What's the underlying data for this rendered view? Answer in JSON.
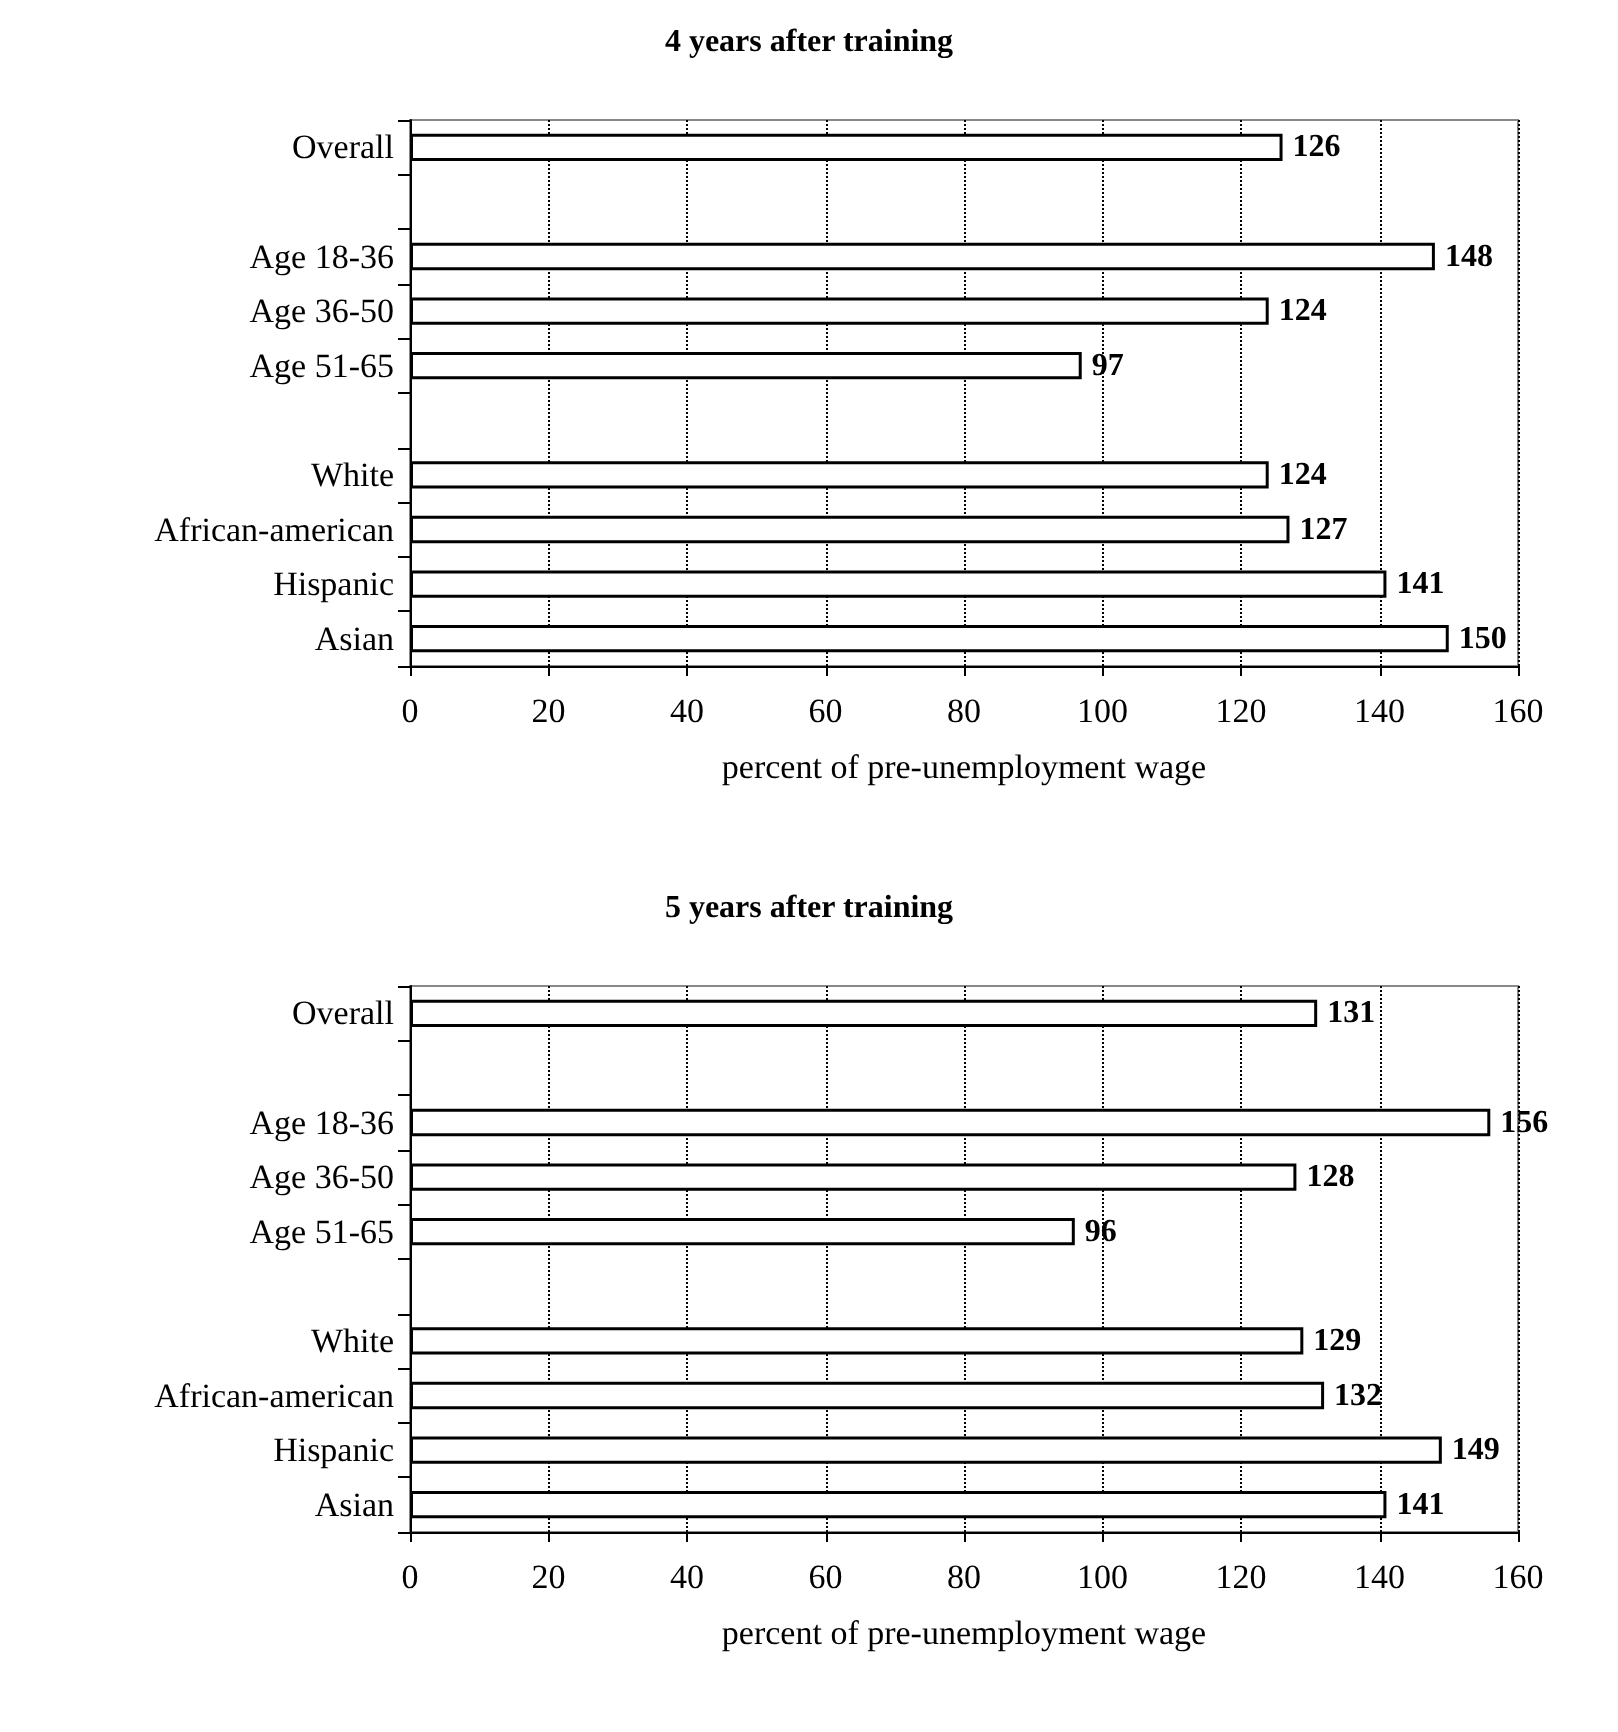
{
  "chart_data": [
    {
      "type": "bar",
      "orientation": "horizontal",
      "title": "4 years after training",
      "xlabel": "percent of pre-unemployment wage",
      "categories": [
        "Overall",
        null,
        "Age 18-36",
        "Age 36-50",
        "Age 51-65",
        null,
        "White",
        "African-american",
        "Hispanic",
        "Asian"
      ],
      "values": [
        126,
        null,
        148,
        124,
        97,
        null,
        124,
        127,
        141,
        150
      ],
      "color": "#ffffff",
      "xlim": [
        0,
        160
      ],
      "xticks": [
        0,
        20,
        40,
        60,
        80,
        100,
        120,
        140,
        160
      ],
      "grid": "x",
      "line_style": "dotted",
      "data_labels": true
    },
    {
      "type": "bar",
      "orientation": "horizontal",
      "title": "5 years after training",
      "xlabel": "percent of pre-unemployment wage",
      "categories": [
        "Overall",
        null,
        "Age 18-36",
        "Age 36-50",
        "Age 51-65",
        null,
        "White",
        "African-american",
        "Hispanic",
        "Asian"
      ],
      "values": [
        131,
        null,
        156,
        128,
        96,
        null,
        129,
        132,
        149,
        141
      ],
      "color": "#ffffff",
      "xlim": [
        0,
        160
      ],
      "xticks": [
        0,
        20,
        40,
        60,
        80,
        100,
        120,
        140,
        160
      ],
      "grid": "x",
      "line_style": "dotted",
      "data_labels": true
    }
  ]
}
